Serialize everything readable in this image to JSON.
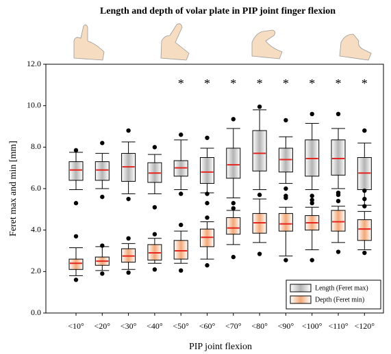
{
  "chart_data": {
    "type": "box",
    "title": "Length and depth of volar plate in PIP joint finger flexion",
    "x_label": "PIP joint flexion",
    "y_label": "Feret max and min [mm]",
    "categories": [
      "<10°",
      "<20°",
      "<30°",
      "<40°",
      "<50°",
      "<60°",
      "<70°",
      "<80°",
      "<90°",
      "<100°",
      "<110°",
      "<120°"
    ],
    "significance_marks": [
      null,
      null,
      null,
      null,
      "*",
      "*",
      "*",
      "*",
      "*",
      "*",
      "*",
      "*"
    ],
    "ylim": [
      0,
      12
    ],
    "yticks": [
      {
        "value": 0,
        "label": "0.0"
      },
      {
        "value": 2,
        "label": "2.0"
      },
      {
        "value": 4,
        "label": "4.0"
      },
      {
        "value": 6,
        "label": "6.0"
      },
      {
        "value": 8,
        "label": "8.0"
      },
      {
        "value": 10,
        "label": "10.0"
      },
      {
        "value": 12,
        "label": "12.0"
      }
    ],
    "legend": "lower right",
    "median_color": "#e3231c",
    "series": [
      {
        "name": "Length (Feret max)",
        "color": "#b4b4b4",
        "boxes": [
          {
            "whislo": 5.95,
            "q1": 6.4,
            "med": 6.9,
            "q3": 7.3,
            "whishi": 7.75,
            "fliers": [
              7.85,
              5.3
            ]
          },
          {
            "whislo": 6.0,
            "q1": 6.4,
            "med": 6.9,
            "q3": 7.3,
            "whishi": 7.7,
            "fliers": [
              8.2,
              5.6
            ]
          },
          {
            "whislo": 5.75,
            "q1": 6.35,
            "med": 7.05,
            "q3": 7.7,
            "whishi": 8.25,
            "fliers": [
              8.8,
              5.5
            ]
          },
          {
            "whislo": 5.75,
            "q1": 6.3,
            "med": 6.75,
            "q3": 7.25,
            "whishi": 7.65,
            "fliers": [
              8.0,
              5.1
            ]
          },
          {
            "whislo": 5.95,
            "q1": 6.6,
            "med": 7.0,
            "q3": 7.35,
            "whishi": 8.35,
            "fliers": [
              8.6,
              5.75
            ]
          },
          {
            "whislo": 5.8,
            "q1": 6.25,
            "med": 6.8,
            "q3": 7.5,
            "whishi": 7.95,
            "fliers": [
              8.45,
              5.75,
              5.3
            ]
          },
          {
            "whislo": 5.55,
            "q1": 6.5,
            "med": 7.15,
            "q3": 7.95,
            "whishi": 8.9,
            "fliers": [
              9.35,
              5.3
            ]
          },
          {
            "whislo": 5.95,
            "q1": 6.85,
            "med": 7.7,
            "q3": 8.8,
            "whishi": 9.8,
            "fliers": [
              9.95
            ]
          },
          {
            "whislo": 6.25,
            "q1": 6.8,
            "med": 7.4,
            "q3": 7.95,
            "whishi": 8.5,
            "fliers": [
              9.3,
              6.0,
              5.65
            ]
          },
          {
            "whislo": 5.95,
            "q1": 6.6,
            "med": 7.45,
            "q3": 8.35,
            "whishi": 9.15,
            "fliers": [
              9.6,
              5.65,
              5.45
            ]
          },
          {
            "whislo": 6.0,
            "q1": 6.65,
            "med": 7.45,
            "q3": 8.35,
            "whishi": 8.9,
            "fliers": [
              9.6,
              5.8,
              5.7
            ]
          },
          {
            "whislo": 5.2,
            "q1": 5.95,
            "med": 6.75,
            "q3": 7.5,
            "whishi": 8.2,
            "fliers": [
              8.8,
              5.9,
              5.5
            ]
          }
        ]
      },
      {
        "name": "Depth (Feret min)",
        "color": "#f2a878",
        "boxes": [
          {
            "whislo": 1.8,
            "q1": 2.1,
            "med": 2.4,
            "q3": 2.6,
            "whishi": 3.15,
            "fliers": [
              3.7,
              1.6
            ]
          },
          {
            "whislo": 2.05,
            "q1": 2.3,
            "med": 2.5,
            "q3": 2.7,
            "whishi": 3.2,
            "fliers": [
              3.25,
              1.9
            ]
          },
          {
            "whislo": 2.1,
            "q1": 2.45,
            "med": 2.75,
            "q3": 3.1,
            "whishi": 3.35,
            "fliers": [
              3.6,
              1.95
            ]
          },
          {
            "whislo": 2.4,
            "q1": 2.55,
            "med": 2.9,
            "q3": 3.3,
            "whishi": 3.6,
            "fliers": [
              3.8,
              2.1
            ]
          },
          {
            "whislo": 2.4,
            "q1": 2.6,
            "med": 3.0,
            "q3": 3.5,
            "whishi": 3.95,
            "fliers": [
              4.25,
              2.05
            ]
          },
          {
            "whislo": 2.6,
            "q1": 3.2,
            "med": 3.65,
            "q3": 4.05,
            "whishi": 4.4,
            "fliers": [
              4.6,
              2.3
            ]
          },
          {
            "whislo": 3.3,
            "q1": 3.8,
            "med": 4.1,
            "q3": 4.6,
            "whishi": 4.95,
            "fliers": [
              5.05,
              2.7
            ]
          },
          {
            "whislo": 3.4,
            "q1": 3.85,
            "med": 4.35,
            "q3": 4.8,
            "whishi": 5.5,
            "fliers": [
              5.7,
              2.85
            ]
          },
          {
            "whislo": 2.75,
            "q1": 3.95,
            "med": 4.3,
            "q3": 4.8,
            "whishi": 5.1,
            "fliers": [
              5.55,
              2.55
            ]
          },
          {
            "whislo": 3.05,
            "q1": 4.0,
            "med": 4.35,
            "q3": 4.7,
            "whishi": 5.1,
            "fliers": [
              5.3,
              2.55
            ]
          },
          {
            "whislo": 3.4,
            "q1": 3.95,
            "med": 4.4,
            "q3": 4.95,
            "whishi": 5.15,
            "fliers": [
              5.4,
              2.95
            ]
          },
          {
            "whislo": 3.05,
            "q1": 3.5,
            "med": 4.05,
            "q3": 4.5,
            "whishi": 4.9,
            "fliers": [
              5.15,
              2.9
            ]
          }
        ]
      }
    ]
  }
}
